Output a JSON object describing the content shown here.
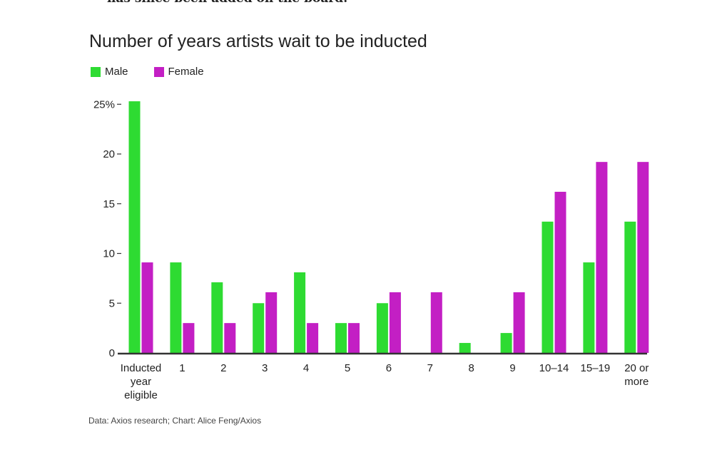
{
  "article": {
    "cut_line": "has since been added on the board."
  },
  "chart_data": {
    "type": "bar",
    "title": "Number of years artists wait to be inducted",
    "categories": [
      "Inducted year eligible",
      "1",
      "2",
      "3",
      "4",
      "5",
      "6",
      "7",
      "8",
      "9",
      "10–14",
      "15–19",
      "20 or more"
    ],
    "category_lines": [
      [
        "Inducted",
        "year",
        "eligible"
      ],
      [
        "1"
      ],
      [
        "2"
      ],
      [
        "3"
      ],
      [
        "4"
      ],
      [
        "5"
      ],
      [
        "6"
      ],
      [
        "7"
      ],
      [
        "8"
      ],
      [
        "9"
      ],
      [
        "10–14"
      ],
      [
        "15–19"
      ],
      [
        "20 or",
        "more"
      ]
    ],
    "series": [
      {
        "name": "Male",
        "color": "#2edb32",
        "values": [
          25.3,
          9.1,
          7.1,
          5.0,
          8.1,
          3.0,
          5.0,
          0,
          1.0,
          2.0,
          13.2,
          9.1,
          13.2
        ]
      },
      {
        "name": "Female",
        "color": "#c31fc4",
        "values": [
          9.1,
          3.0,
          3.0,
          6.1,
          3.0,
          3.0,
          6.1,
          6.1,
          0,
          6.1,
          16.2,
          19.2,
          19.2
        ]
      }
    ],
    "ylim": [
      0,
      25
    ],
    "yticks": [
      {
        "value": 0,
        "label": "0"
      },
      {
        "value": 5,
        "label": "5"
      },
      {
        "value": 10,
        "label": "10"
      },
      {
        "value": 15,
        "label": "15"
      },
      {
        "value": 20,
        "label": "20"
      },
      {
        "value": 25,
        "label": "25%"
      }
    ],
    "xlabel": "",
    "ylabel": "",
    "grid": false,
    "legend_position": "top-left"
  },
  "source": "Data: Axios research; Chart: Alice Feng/Axios"
}
